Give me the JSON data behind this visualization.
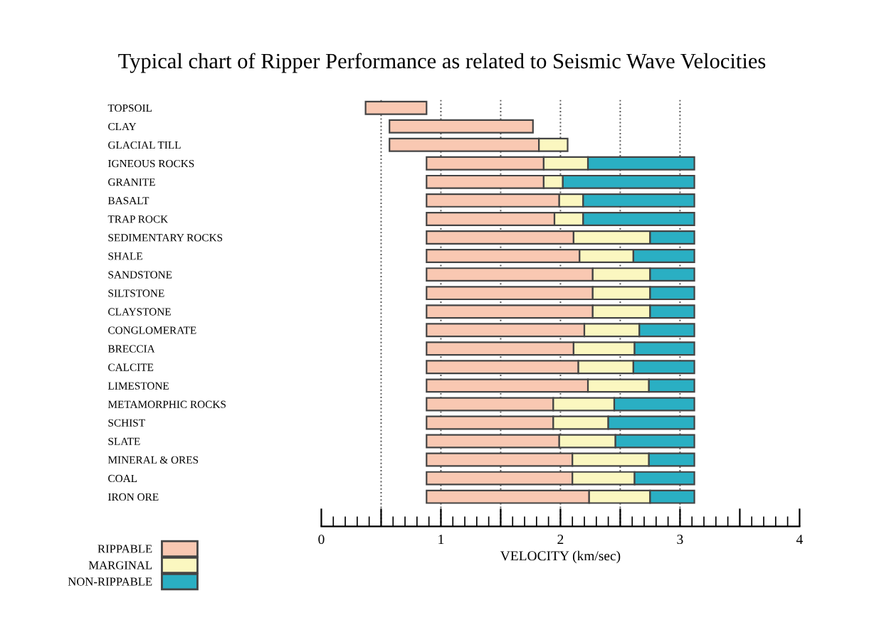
{
  "chart_data": {
    "type": "bar",
    "orientation": "horizontal",
    "title": "Typical chart of Ripper Performance as related to Seismic Wave Velocities",
    "xlabel": "VELOCITY (km/sec)",
    "categories": [
      "TOPSOIL",
      "CLAY",
      "GLACIAL TILL",
      "IGNEOUS ROCKS",
      "GRANITE",
      "BASALT",
      "TRAP ROCK",
      "SEDIMENTARY ROCKS",
      "SHALE",
      "SANDSTONE",
      "SILTSTONE",
      "CLAYSTONE",
      "CONGLOMERATE",
      "BRECCIA",
      "CALCITE",
      "LIMESTONE",
      "METAMORPHIC ROCKS",
      "SCHIST",
      "SLATE",
      "MINERAL & ORES",
      "COAL",
      "IRON ORE"
    ],
    "series": [
      {
        "name": "RIPPABLE",
        "color": "#f9c8b2",
        "base": [
          0.37,
          0.57,
          0.57,
          0.88,
          0.88,
          0.88,
          0.88,
          0.88,
          0.88,
          0.88,
          0.88,
          0.88,
          0.88,
          0.88,
          0.88,
          0.88,
          0.88,
          0.88,
          0.88,
          0.88,
          0.88,
          0.88
        ],
        "values": [
          0.51,
          1.2,
          1.25,
          0.98,
          0.98,
          1.11,
          1.07,
          1.23,
          1.28,
          1.39,
          1.39,
          1.39,
          1.32,
          1.23,
          1.27,
          1.35,
          1.06,
          1.06,
          1.11,
          1.22,
          1.22,
          1.36
        ]
      },
      {
        "name": "MARGINAL",
        "color": "#fbf7c0",
        "base": [
          null,
          null,
          1.82,
          1.86,
          1.86,
          1.99,
          1.95,
          2.11,
          2.16,
          2.27,
          2.27,
          2.27,
          2.2,
          2.11,
          2.15,
          2.23,
          1.94,
          1.94,
          1.99,
          2.1,
          2.1,
          2.24
        ],
        "values": [
          null,
          null,
          0.24,
          0.37,
          0.16,
          0.2,
          0.24,
          0.64,
          0.45,
          0.48,
          0.48,
          0.48,
          0.46,
          0.51,
          0.46,
          0.51,
          0.51,
          0.46,
          0.47,
          0.64,
          0.52,
          0.51
        ]
      },
      {
        "name": "NON-RIPPABLE",
        "color": "#2aafc3",
        "base": [
          null,
          null,
          null,
          2.23,
          2.02,
          2.19,
          2.19,
          2.75,
          2.61,
          2.75,
          2.75,
          2.75,
          2.66,
          2.62,
          2.61,
          2.74,
          2.45,
          2.4,
          2.46,
          2.74,
          2.62,
          2.75
        ],
        "values": [
          null,
          null,
          null,
          0.89,
          1.1,
          0.93,
          0.93,
          0.37,
          0.51,
          0.37,
          0.37,
          0.37,
          0.46,
          0.5,
          0.51,
          0.38,
          0.67,
          0.72,
          0.66,
          0.38,
          0.5,
          0.37
        ]
      }
    ],
    "xlim": [
      0,
      4
    ],
    "xticks": [
      0,
      {
        "value": 0.5,
        "label": null
      },
      1,
      {
        "value": 1.5,
        "label": null
      },
      2,
      {
        "value": 2.5,
        "label": null
      },
      3,
      {
        "value": 3.5,
        "label": null
      },
      4
    ],
    "ref_lines": [
      {
        "axis": "x",
        "value": 0.5,
        "line_style": "dotted",
        "color": "#555555"
      },
      {
        "axis": "x",
        "value": 1,
        "line_style": "dotted",
        "color": "#555555"
      },
      {
        "axis": "x",
        "value": 1.5,
        "line_style": "dotted",
        "color": "#555555"
      },
      {
        "axis": "x",
        "value": 2,
        "line_style": "dotted",
        "color": "#555555"
      },
      {
        "axis": "x",
        "value": 2.5,
        "line_style": "dotted",
        "color": "#555555"
      },
      {
        "axis": "x",
        "value": 3,
        "line_style": "dotted",
        "color": "#555555"
      }
    ],
    "grid": false,
    "legend": "bottom left"
  }
}
